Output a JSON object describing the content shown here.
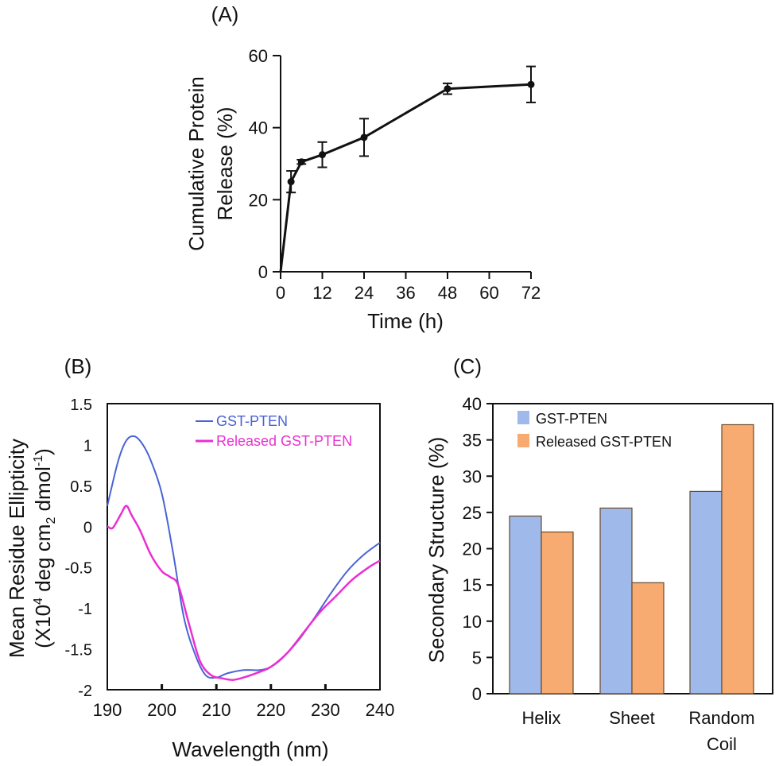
{
  "colors": {
    "axis": "#111111",
    "gst_pten": "#4a63d4",
    "released_gst_pten": "#ea2fd2",
    "bar_gst_pten": "#9fb9ea",
    "bar_released_gst_pten": "#f7ab70"
  },
  "chart_data": [
    {
      "panel": "(A)",
      "type": "line",
      "xlabel": "Time (h)",
      "ylabel": "Cumulative Protein Release (%)",
      "ylabel_lines": [
        "Cumulative Protein",
        "Release (%)"
      ],
      "xlim": [
        0,
        72
      ],
      "ylim": [
        0,
        60
      ],
      "xticks": [
        0,
        12,
        24,
        36,
        48,
        60,
        72
      ],
      "yticks": [
        0,
        20,
        40,
        60
      ],
      "series": [
        {
          "x": [
            0,
            3,
            6,
            12,
            24,
            48,
            72
          ],
          "y": [
            0,
            25,
            30.5,
            32.5,
            37.3,
            50.8,
            52
          ],
          "error": [
            0,
            3,
            0.6,
            3.5,
            5.2,
            1.5,
            5
          ]
        }
      ],
      "markers": "circle",
      "grid": false
    },
    {
      "panel": "(B)",
      "type": "line",
      "xlabel": "Wavelength (nm)",
      "ylabel_line1": "Mean Residue Ellipticity",
      "ylabel_line2": {
        "pre": "(X10",
        "sup1": "4",
        "mid1": " deg cm",
        "sub": "2",
        "mid2": " dmol",
        "sup2": "-1",
        "post": ")"
      },
      "xlim": [
        190,
        240
      ],
      "ylim": [
        -2,
        1.5
      ],
      "xticks": [
        190,
        200,
        210,
        220,
        230,
        240
      ],
      "yticks": [
        -2,
        -1.5,
        -1,
        -0.5,
        0,
        0.5,
        1,
        1.5
      ],
      "ytick_labels": [
        "-2",
        "-1.5",
        "-1",
        "-0.5",
        "0",
        "0.5",
        "1",
        "1.5"
      ],
      "legend_position": "top-right",
      "series": [
        {
          "name": "GST-PTEN",
          "x": [
            190,
            192,
            193.5,
            195,
            196.5,
            198,
            200,
            202,
            204,
            206,
            208,
            210,
            212,
            215,
            218,
            220,
            222,
            225,
            228,
            231,
            234,
            237,
            240
          ],
          "y": [
            0.25,
            0.8,
            1.05,
            1.1,
            1.0,
            0.8,
            0.4,
            -0.3,
            -1.1,
            -1.55,
            -1.82,
            -1.85,
            -1.8,
            -1.76,
            -1.76,
            -1.72,
            -1.62,
            -1.4,
            -1.12,
            -0.82,
            -0.55,
            -0.35,
            -0.2
          ]
        },
        {
          "name": "Released GST-PTEN",
          "x": [
            190,
            191,
            192.5,
            193.5,
            194.5,
            196,
            198,
            200,
            201.5,
            203,
            205,
            207,
            209,
            211,
            213,
            215,
            218,
            220,
            223,
            226,
            229,
            232,
            235,
            238,
            240
          ],
          "y": [
            0,
            -0.02,
            0.15,
            0.25,
            0.13,
            -0.05,
            -0.35,
            -0.55,
            -0.62,
            -0.72,
            -1.2,
            -1.65,
            -1.82,
            -1.86,
            -1.88,
            -1.85,
            -1.78,
            -1.72,
            -1.55,
            -1.3,
            -1.05,
            -0.85,
            -0.65,
            -0.5,
            -0.42
          ]
        }
      ],
      "grid": false
    },
    {
      "panel": "(C)",
      "type": "bar",
      "ylabel": "Secondary Structure (%)",
      "categories": [
        "Helix",
        "Sheet",
        "Random Coil"
      ],
      "category_lines": [
        [
          "Helix"
        ],
        [
          "Sheet"
        ],
        [
          "Random",
          "Coil"
        ]
      ],
      "ylim": [
        0,
        40
      ],
      "yticks": [
        0,
        5,
        10,
        15,
        20,
        25,
        30,
        35,
        40
      ],
      "legend_position": "top-left",
      "series": [
        {
          "name": "GST-PTEN",
          "values": [
            24.5,
            25.6,
            27.9
          ]
        },
        {
          "name": "Released GST-PTEN",
          "values": [
            22.3,
            15.3,
            37.1
          ]
        }
      ],
      "grid": false
    }
  ]
}
